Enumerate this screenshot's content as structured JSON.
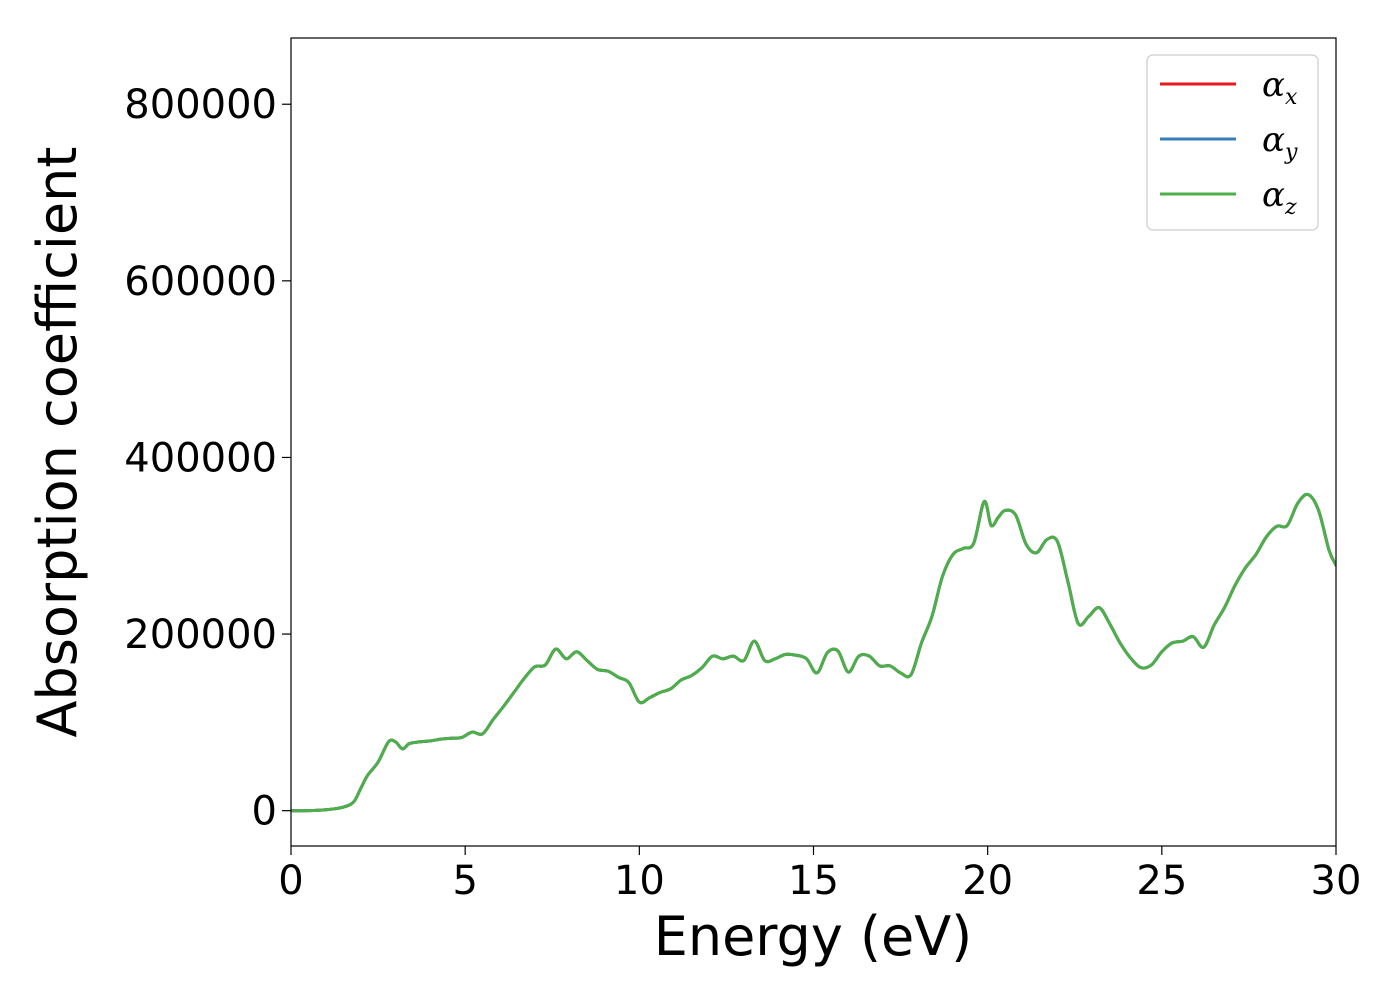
{
  "chart_data": {
    "type": "line",
    "xlabel": "Energy (eV)",
    "ylabel": "Absorption coefficient",
    "xlim": [
      0,
      30
    ],
    "ylim": [
      -40000,
      875000
    ],
    "xticks": [
      0,
      5,
      10,
      15,
      20,
      25,
      30
    ],
    "yticks": [
      0,
      200000,
      400000,
      600000,
      800000
    ],
    "xtick_labels": [
      "0",
      "5",
      "10",
      "15",
      "20",
      "25",
      "30"
    ],
    "ytick_labels": [
      "0",
      "200000",
      "400000",
      "600000",
      "800000"
    ],
    "grid": false,
    "legend_position": "top-right",
    "legend": [
      {
        "symbol": "α",
        "subscript": "x",
        "color": "#e41a1c"
      },
      {
        "symbol": "α",
        "subscript": "y",
        "color": "#377eb8"
      },
      {
        "symbol": "α",
        "subscript": "z",
        "color": "#4daf4a"
      }
    ],
    "x": [
      0,
      0.5,
      1.0,
      1.5,
      1.8,
      2.0,
      2.2,
      2.5,
      2.8,
      3.0,
      3.2,
      3.4,
      3.7,
      4.0,
      4.3,
      4.6,
      4.9,
      5.2,
      5.5,
      5.8,
      6.1,
      6.4,
      6.7,
      7.0,
      7.3,
      7.6,
      7.9,
      8.2,
      8.5,
      8.8,
      9.1,
      9.4,
      9.7,
      10.0,
      10.3,
      10.6,
      10.9,
      11.2,
      11.5,
      11.8,
      12.1,
      12.4,
      12.7,
      13.0,
      13.3,
      13.6,
      13.9,
      14.2,
      14.5,
      14.8,
      15.1,
      15.4,
      15.7,
      16.0,
      16.3,
      16.6,
      16.9,
      17.2,
      17.5,
      17.8,
      18.1,
      18.4,
      18.7,
      19.0,
      19.3,
      19.6,
      19.9,
      20.1,
      20.3,
      20.5,
      20.8,
      21.1,
      21.4,
      21.7,
      22.0,
      22.3,
      22.6,
      22.9,
      23.2,
      23.5,
      23.8,
      24.1,
      24.4,
      24.7,
      25.0,
      25.3,
      25.6,
      25.9,
      26.2,
      26.5,
      26.8,
      27.1,
      27.4,
      27.7,
      28.0,
      28.3,
      28.6,
      28.9,
      29.2,
      29.5,
      29.8,
      30.0
    ],
    "series": [
      {
        "name": "α_x",
        "color": "#e41a1c",
        "values": [
          0,
          0,
          1000,
          4000,
          10000,
          25000,
          40000,
          55000,
          78000,
          78000,
          70000,
          76000,
          78000,
          79000,
          81000,
          82000,
          83000,
          89000,
          87000,
          103000,
          118000,
          134000,
          150000,
          163000,
          165000,
          183000,
          172000,
          180000,
          170000,
          160000,
          158000,
          151000,
          145000,
          123000,
          128000,
          134000,
          138000,
          148000,
          153000,
          162000,
          175000,
          172000,
          175000,
          170000,
          192000,
          170000,
          172000,
          177000,
          176000,
          172000,
          156000,
          179000,
          181000,
          157000,
          175000,
          175000,
          164000,
          164000,
          156000,
          154000,
          190000,
          220000,
          265000,
          290000,
          297000,
          303000,
          350000,
          323000,
          332000,
          340000,
          335000,
          302000,
          292000,
          307000,
          305000,
          260000,
          212000,
          220000,
          230000,
          212000,
          190000,
          173000,
          162000,
          165000,
          180000,
          190000,
          192000,
          197000,
          185000,
          210000,
          230000,
          255000,
          275000,
          290000,
          310000,
          322000,
          323000,
          348000,
          358000,
          340000,
          295000,
          278000
        ]
      },
      {
        "name": "α_y",
        "color": "#377eb8",
        "values": [
          0,
          0,
          1000,
          4000,
          10000,
          25000,
          40000,
          55000,
          78000,
          78000,
          70000,
          76000,
          78000,
          79000,
          81000,
          82000,
          83000,
          89000,
          87000,
          103000,
          118000,
          134000,
          150000,
          163000,
          165000,
          183000,
          172000,
          180000,
          170000,
          160000,
          158000,
          151000,
          145000,
          123000,
          128000,
          134000,
          138000,
          148000,
          153000,
          162000,
          175000,
          172000,
          175000,
          170000,
          192000,
          170000,
          172000,
          177000,
          176000,
          172000,
          156000,
          179000,
          181000,
          157000,
          175000,
          175000,
          164000,
          164000,
          156000,
          154000,
          190000,
          220000,
          265000,
          290000,
          297000,
          303000,
          350000,
          323000,
          332000,
          340000,
          335000,
          302000,
          292000,
          307000,
          305000,
          260000,
          212000,
          220000,
          230000,
          212000,
          190000,
          173000,
          162000,
          165000,
          180000,
          190000,
          192000,
          197000,
          185000,
          210000,
          230000,
          255000,
          275000,
          290000,
          310000,
          322000,
          323000,
          348000,
          358000,
          340000,
          295000,
          278000
        ]
      },
      {
        "name": "α_z",
        "color": "#4daf4a",
        "values": [
          0,
          0,
          1000,
          4000,
          10000,
          25000,
          40000,
          55000,
          78000,
          78000,
          70000,
          76000,
          78000,
          79000,
          81000,
          82000,
          83000,
          89000,
          87000,
          103000,
          118000,
          134000,
          150000,
          163000,
          165000,
          183000,
          172000,
          180000,
          170000,
          160000,
          158000,
          151000,
          145000,
          123000,
          128000,
          134000,
          138000,
          148000,
          153000,
          162000,
          175000,
          172000,
          175000,
          170000,
          192000,
          170000,
          172000,
          177000,
          176000,
          172000,
          156000,
          179000,
          181000,
          157000,
          175000,
          175000,
          164000,
          164000,
          156000,
          154000,
          190000,
          220000,
          265000,
          290000,
          297000,
          303000,
          350000,
          323000,
          332000,
          340000,
          335000,
          302000,
          292000,
          307000,
          305000,
          260000,
          212000,
          220000,
          230000,
          212000,
          190000,
          173000,
          162000,
          165000,
          180000,
          190000,
          192000,
          197000,
          185000,
          210000,
          230000,
          255000,
          275000,
          290000,
          310000,
          322000,
          323000,
          348000,
          358000,
          340000,
          295000,
          278000
        ]
      }
    ]
  }
}
